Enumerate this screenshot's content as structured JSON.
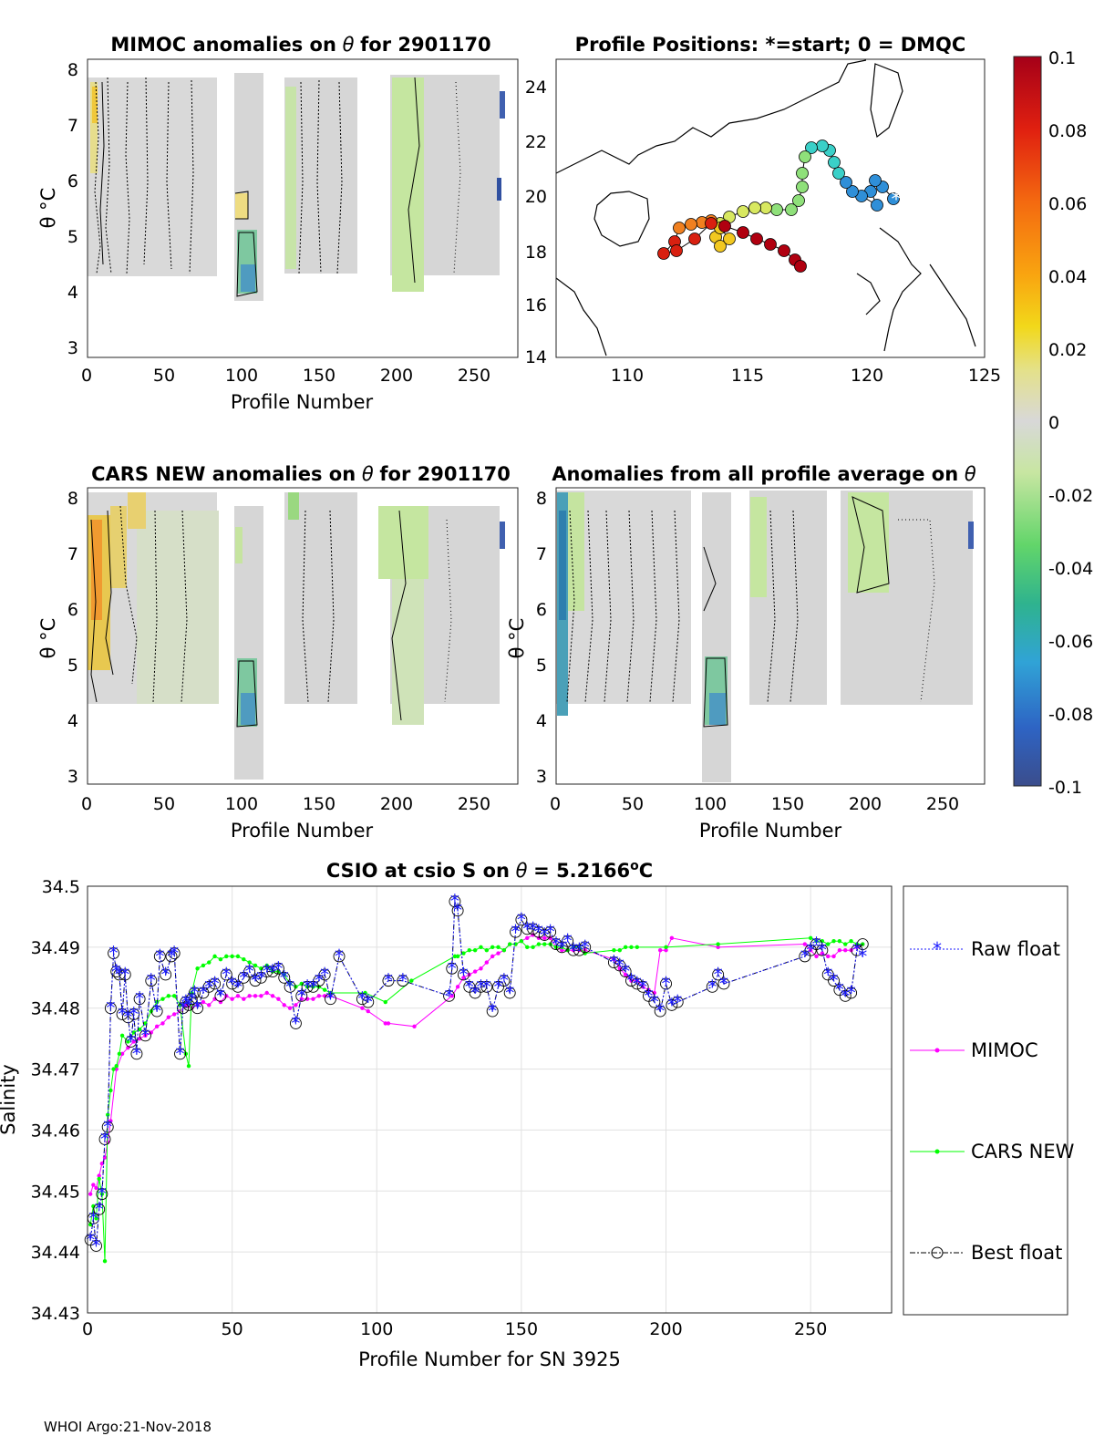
{
  "footer": "WHOI Argo:21-Nov-2018",
  "panels": {
    "mimoc": {
      "title_prefix": "MIMOC anomalies on",
      "title_suffix": "for 2901170",
      "ylabel": "θ °C",
      "xlabel": "Profile Number",
      "xticks": [
        "0",
        "50",
        "100",
        "150",
        "200",
        "250"
      ],
      "yticks": [
        "3",
        "4",
        "5",
        "6",
        "7",
        "8"
      ]
    },
    "positions": {
      "title": "Profile Positions: *=start; 0 = DMQC",
      "xticks": [
        "110",
        "115",
        "120",
        "125"
      ],
      "yticks": [
        "14",
        "16",
        "18",
        "20",
        "22",
        "24"
      ]
    },
    "cars": {
      "title_prefix": "CARS NEW anomalies on",
      "title_suffix": "for 2901170",
      "ylabel": "θ °C",
      "xlabel": "Profile Number",
      "xticks": [
        "0",
        "50",
        "100",
        "150",
        "200",
        "250"
      ],
      "yticks": [
        "3",
        "4",
        "5",
        "6",
        "7",
        "8"
      ]
    },
    "allavg": {
      "title_prefix": "Anomalies from all profile average on",
      "ylabel": "θ °C",
      "xlabel": "Profile Number",
      "xticks": [
        "0",
        "50",
        "100",
        "150",
        "200",
        "250"
      ],
      "yticks": [
        "3",
        "4",
        "5",
        "6",
        "7",
        "8"
      ]
    },
    "colorbar": {
      "ticks": [
        "0.1",
        "0.08",
        "0.06",
        "0.04",
        "0.02",
        "0",
        "-0.02",
        "-0.04",
        "-0.06",
        "-0.08",
        "-0.1"
      ]
    }
  },
  "chart_data": {
    "type": "line",
    "title_prefix": "CSIO at csio S on",
    "title_value": "= 5.2166",
    "title_unit": "C",
    "xlabel": "Profile Number for SN 3925",
    "ylabel": "Salinity",
    "xlim": [
      0,
      278
    ],
    "ylim": [
      34.43,
      34.5
    ],
    "xticks": [
      "0",
      "50",
      "100",
      "150",
      "200",
      "250"
    ],
    "yticks": [
      "34.5",
      "34.49",
      "34.48",
      "34.47",
      "34.46",
      "34.45",
      "34.44",
      "34.43"
    ],
    "grid": true,
    "legend_position": "outside-right",
    "series": [
      {
        "name": "Raw float",
        "color": "#1a1aff",
        "x": [
          1,
          2,
          3,
          4,
          5,
          6,
          7,
          8,
          9,
          10,
          11,
          12,
          13,
          14,
          15,
          16,
          17,
          18,
          20,
          22,
          24,
          25,
          27,
          29,
          30,
          32,
          33,
          34,
          35,
          36,
          37,
          38,
          40,
          42,
          44,
          46,
          48,
          50,
          52,
          54,
          56,
          58,
          60,
          62,
          64,
          66,
          68,
          70,
          72,
          74,
          76,
          78,
          80,
          82,
          84,
          87,
          95,
          97,
          104,
          109,
          125,
          126,
          127,
          128,
          130,
          132,
          134,
          136,
          138,
          140,
          142,
          144,
          146,
          148,
          150,
          152,
          154,
          156,
          158,
          160,
          162,
          164,
          166,
          168,
          170,
          172,
          182,
          184,
          186,
          188,
          190,
          192,
          194,
          196,
          198,
          200,
          202,
          204,
          216,
          218,
          220,
          248,
          250,
          252,
          254,
          256,
          258,
          260,
          262,
          264,
          266,
          268
        ],
        "values": [
          34.442,
          34.4455,
          34.441,
          34.447,
          34.4495,
          34.4585,
          34.4605,
          34.48,
          34.489,
          34.486,
          34.4855,
          34.479,
          34.4855,
          34.4785,
          34.4745,
          34.479,
          34.4725,
          34.4815,
          34.4755,
          34.4845,
          34.4795,
          34.4885,
          34.4855,
          34.4885,
          34.489,
          34.4725,
          34.48,
          34.481,
          34.4805,
          34.4815,
          34.4825,
          34.48,
          34.4825,
          34.4835,
          34.484,
          34.482,
          34.4855,
          34.484,
          34.4835,
          34.485,
          34.486,
          34.4845,
          34.485,
          34.486,
          34.486,
          34.4865,
          34.485,
          34.4835,
          34.4775,
          34.482,
          34.4835,
          34.4835,
          34.4845,
          34.4855,
          34.4815,
          34.4885,
          34.4815,
          34.481,
          34.4845,
          34.4845,
          34.482,
          34.4865,
          34.4975,
          34.496,
          34.4855,
          34.4835,
          34.4825,
          34.4835,
          34.4835,
          34.4795,
          34.4835,
          34.4845,
          34.4825,
          34.4925,
          34.4945,
          34.493,
          34.493,
          34.4925,
          34.492,
          34.4925,
          34.4905,
          34.49,
          34.491,
          34.4895,
          34.4895,
          34.49,
          34.4875,
          34.487,
          34.486,
          34.4845,
          34.484,
          34.4835,
          34.482,
          34.481,
          34.4795,
          34.484,
          34.4805,
          34.481,
          34.4835,
          34.4855,
          34.484,
          34.4885,
          34.4895,
          34.4905,
          34.4895,
          34.4855,
          34.4845,
          34.483,
          34.482,
          34.4825,
          34.4895,
          34.4885
        ]
      },
      {
        "name": "MIMOC",
        "color": "#ff00ff",
        "x": [
          1,
          2,
          3,
          4,
          5,
          6,
          7,
          8,
          10,
          12,
          14,
          16,
          18,
          20,
          22,
          24,
          26,
          28,
          30,
          32,
          34,
          36,
          38,
          40,
          42,
          44,
          46,
          48,
          50,
          52,
          54,
          56,
          58,
          60,
          62,
          64,
          66,
          68,
          70,
          72,
          74,
          76,
          78,
          80,
          82,
          84,
          95,
          97,
          103,
          104,
          113,
          126,
          128,
          130,
          132,
          134,
          136,
          138,
          140,
          142,
          144,
          146,
          148,
          150,
          152,
          154,
          156,
          158,
          160,
          162,
          164,
          166,
          168,
          170,
          172,
          182,
          184,
          186,
          188,
          190,
          192,
          194,
          196,
          198,
          200,
          202,
          218,
          248,
          250,
          252,
          254,
          256,
          258,
          260,
          262,
          264,
          266,
          268
        ],
        "values": [
          34.4495,
          34.451,
          34.4505,
          34.4525,
          34.4545,
          34.4555,
          34.458,
          34.4615,
          34.47,
          34.4725,
          34.4735,
          34.4745,
          34.475,
          34.4755,
          34.476,
          34.477,
          34.4775,
          34.4785,
          34.479,
          34.4795,
          34.4805,
          34.48,
          34.4805,
          34.481,
          34.4805,
          34.4815,
          34.481,
          34.482,
          34.4815,
          34.482,
          34.4815,
          34.482,
          34.482,
          34.482,
          34.4825,
          34.482,
          34.4815,
          34.4805,
          34.48,
          34.4805,
          34.4815,
          34.4815,
          34.4815,
          34.482,
          34.482,
          34.482,
          34.48,
          34.4795,
          34.4775,
          34.4775,
          34.477,
          34.482,
          34.4835,
          34.485,
          34.4855,
          34.486,
          34.4865,
          34.4875,
          34.4885,
          34.489,
          34.4895,
          34.4905,
          34.4905,
          34.491,
          34.4915,
          34.492,
          34.4915,
          34.4915,
          34.4915,
          34.49,
          34.4895,
          34.4895,
          34.4895,
          34.4895,
          34.4895,
          34.488,
          34.4865,
          34.4855,
          34.4845,
          34.4845,
          34.4835,
          34.483,
          34.4825,
          34.4895,
          34.4895,
          34.4915,
          34.49,
          34.4905,
          34.4895,
          34.4885,
          34.489,
          34.4885,
          34.4885,
          34.4895,
          34.4895,
          34.4895,
          34.49,
          34.4905
        ]
      },
      {
        "name": "CARS NEW",
        "color": "#00ff00",
        "x": [
          1,
          2,
          3,
          4,
          5,
          6,
          7,
          8,
          9,
          10,
          11,
          12,
          14,
          16,
          18,
          20,
          22,
          24,
          26,
          28,
          30,
          32,
          34,
          35,
          36,
          38,
          40,
          42,
          44,
          46,
          48,
          50,
          52,
          54,
          56,
          58,
          60,
          62,
          64,
          66,
          68,
          70,
          72,
          74,
          76,
          78,
          80,
          82,
          84,
          96,
          103,
          112,
          127,
          128,
          130,
          132,
          134,
          136,
          138,
          140,
          142,
          144,
          146,
          148,
          150,
          152,
          154,
          156,
          158,
          160,
          162,
          164,
          166,
          168,
          170,
          172,
          182,
          184,
          186,
          188,
          190,
          200,
          218,
          250,
          252,
          254,
          256,
          258,
          260,
          262,
          264,
          266,
          268
        ],
        "values": [
          34.4445,
          34.4475,
          34.4455,
          34.452,
          34.4495,
          34.4385,
          34.4625,
          34.4665,
          34.47,
          34.4705,
          34.4725,
          34.4755,
          34.4745,
          34.476,
          34.4765,
          34.4775,
          34.4795,
          34.481,
          34.4815,
          34.482,
          34.482,
          34.4805,
          34.4725,
          34.4705,
          34.4825,
          34.4865,
          34.487,
          34.4875,
          34.4885,
          34.488,
          34.4885,
          34.4885,
          34.4885,
          34.488,
          34.4875,
          34.487,
          34.4865,
          34.487,
          34.486,
          34.486,
          34.4855,
          34.484,
          34.4835,
          34.484,
          34.4835,
          34.4835,
          34.4835,
          34.483,
          34.4825,
          34.4825,
          34.481,
          34.4845,
          34.4885,
          34.4885,
          34.489,
          34.4895,
          34.4895,
          34.49,
          34.4895,
          34.49,
          34.49,
          34.4895,
          34.4905,
          34.4905,
          34.491,
          34.49,
          34.49,
          34.4905,
          34.4905,
          34.4905,
          34.49,
          34.49,
          34.4895,
          34.49,
          34.49,
          34.489,
          34.4895,
          34.4895,
          34.49,
          34.49,
          34.49,
          34.49,
          34.4905,
          34.4915,
          34.491,
          34.491,
          34.4905,
          34.491,
          34.491,
          34.4905,
          34.491,
          34.4905,
          34.4905
        ]
      },
      {
        "name": "Best float",
        "color": "#000000",
        "x": [
          1,
          2,
          3,
          4,
          5,
          6,
          7,
          8,
          9,
          10,
          11,
          12,
          13,
          14,
          15,
          16,
          17,
          18,
          20,
          22,
          24,
          25,
          27,
          29,
          30,
          32,
          33,
          34,
          35,
          36,
          37,
          38,
          40,
          42,
          44,
          46,
          48,
          50,
          52,
          54,
          56,
          58,
          60,
          62,
          64,
          66,
          68,
          70,
          72,
          74,
          76,
          78,
          80,
          82,
          84,
          87,
          95,
          97,
          104,
          109,
          125,
          126,
          127,
          128,
          130,
          132,
          134,
          136,
          138,
          140,
          142,
          144,
          146,
          148,
          150,
          152,
          154,
          156,
          158,
          160,
          162,
          164,
          166,
          168,
          170,
          172,
          182,
          184,
          186,
          188,
          190,
          192,
          194,
          196,
          198,
          200,
          202,
          204,
          216,
          218,
          220,
          248,
          250,
          252,
          254,
          256,
          258,
          260,
          262,
          264,
          266,
          268
        ],
        "values": [
          34.442,
          34.4455,
          34.441,
          34.447,
          34.4495,
          34.4585,
          34.4605,
          34.48,
          34.489,
          34.486,
          34.4855,
          34.479,
          34.4855,
          34.4785,
          34.4745,
          34.479,
          34.4725,
          34.4815,
          34.4755,
          34.4845,
          34.4795,
          34.4885,
          34.4855,
          34.4885,
          34.489,
          34.4725,
          34.48,
          34.481,
          34.4805,
          34.4815,
          34.4825,
          34.48,
          34.4825,
          34.4835,
          34.484,
          34.482,
          34.4855,
          34.484,
          34.4835,
          34.485,
          34.486,
          34.4845,
          34.485,
          34.486,
          34.486,
          34.4865,
          34.485,
          34.4835,
          34.4775,
          34.482,
          34.4835,
          34.4835,
          34.4845,
          34.4855,
          34.4815,
          34.4885,
          34.4815,
          34.481,
          34.4845,
          34.4845,
          34.482,
          34.4865,
          34.4975,
          34.496,
          34.4855,
          34.4835,
          34.4825,
          34.4835,
          34.4835,
          34.4795,
          34.4835,
          34.4845,
          34.4825,
          34.4925,
          34.4945,
          34.493,
          34.493,
          34.4925,
          34.492,
          34.4925,
          34.4905,
          34.49,
          34.491,
          34.4895,
          34.4895,
          34.49,
          34.4875,
          34.487,
          34.486,
          34.4845,
          34.484,
          34.4835,
          34.482,
          34.481,
          34.4795,
          34.484,
          34.4805,
          34.481,
          34.4835,
          34.4855,
          34.484,
          34.4885,
          34.4895,
          34.4905,
          34.4895,
          34.4855,
          34.4845,
          34.483,
          34.482,
          34.4825,
          34.4895,
          34.4905
        ]
      }
    ]
  }
}
